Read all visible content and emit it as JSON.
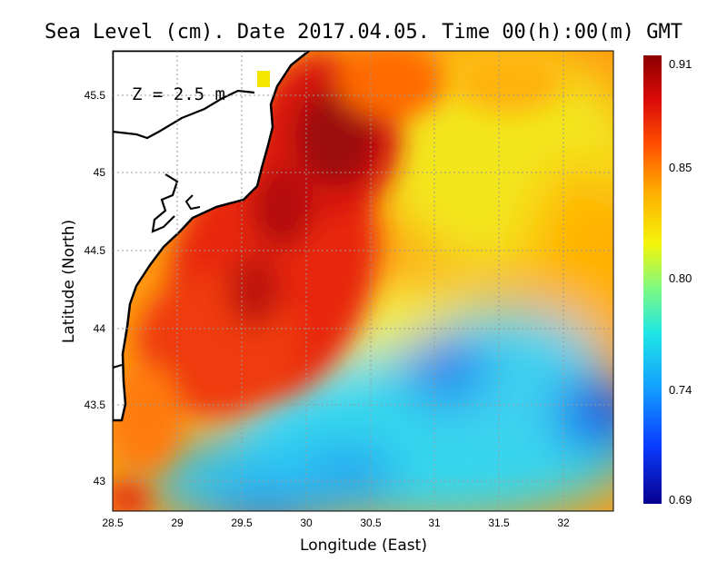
{
  "title": "Sea Level (cm). Date 2017.04.05. Time 00(h):00(m) GMT",
  "depth_label": "Z = 2.5 m",
  "xlabel": "Longitude (East)",
  "ylabel": "Latitude (North)",
  "x_ticks": [
    "28.5",
    "29",
    "29.5",
    "30",
    "30.5",
    "31",
    "31.5",
    "32"
  ],
  "y_ticks": [
    "45.5",
    "45",
    "44.5",
    "44",
    "43.5",
    "43"
  ],
  "colorbar_ticks": [
    "0.91",
    "0.85",
    "0.80",
    "0.74",
    "0.69"
  ],
  "colors": {
    "land": "#ffffff",
    "coast": "#000000",
    "grid": "#9a9a9a",
    "scale": [
      "#08008f",
      "#0a3cff",
      "#14a0ff",
      "#1ee6e6",
      "#7dfa82",
      "#f5f50a",
      "#ffaa00",
      "#ff5000",
      "#dc0a0a",
      "#8c0000"
    ]
  },
  "chart_data": {
    "type": "heatmap",
    "title": "Sea Level (cm). Date 2017.04.05. Time 00(h):00(m) GMT",
    "xlabel": "Longitude (East)",
    "ylabel": "Latitude (North)",
    "xlim": [
      28.5,
      32.4
    ],
    "ylim": [
      42.8,
      45.8
    ],
    "value_range": [
      0.69,
      0.91
    ]
  }
}
